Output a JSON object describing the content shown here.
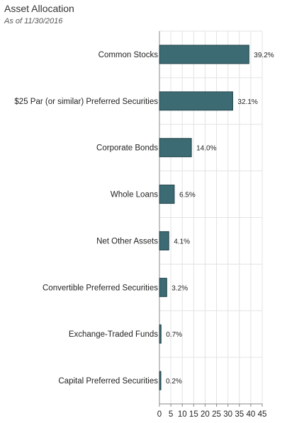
{
  "header": {
    "title": "Asset Allocation",
    "subtitle": "As of 11/30/2016"
  },
  "colors": {
    "bar": "#3d6b73",
    "bar_edge": "#1f4148",
    "grid": "#e3e3e3",
    "axis": "#888888"
  },
  "chart_data": {
    "type": "bar",
    "orientation": "horizontal",
    "categories": [
      "Common Stocks",
      "$25 Par (or similar) Preferred Securities",
      "Corporate Bonds",
      "Whole Loans",
      "Net Other Assets",
      "Convertible Preferred Securities",
      "Exchange-Traded Funds",
      "Capital Preferred Securities"
    ],
    "values": [
      39.2,
      32.1,
      14.0,
      6.5,
      4.1,
      3.2,
      0.7,
      0.2
    ],
    "value_labels": [
      "39.2%",
      "32.1%",
      "14.0%",
      "6.5%",
      "4.1%",
      "3.2%",
      "0.7%",
      "0.2%"
    ],
    "xlim": [
      0,
      45
    ],
    "xticks": [
      0,
      5,
      10,
      15,
      20,
      25,
      30,
      35,
      40,
      45
    ],
    "grid": true,
    "legend": "none"
  }
}
